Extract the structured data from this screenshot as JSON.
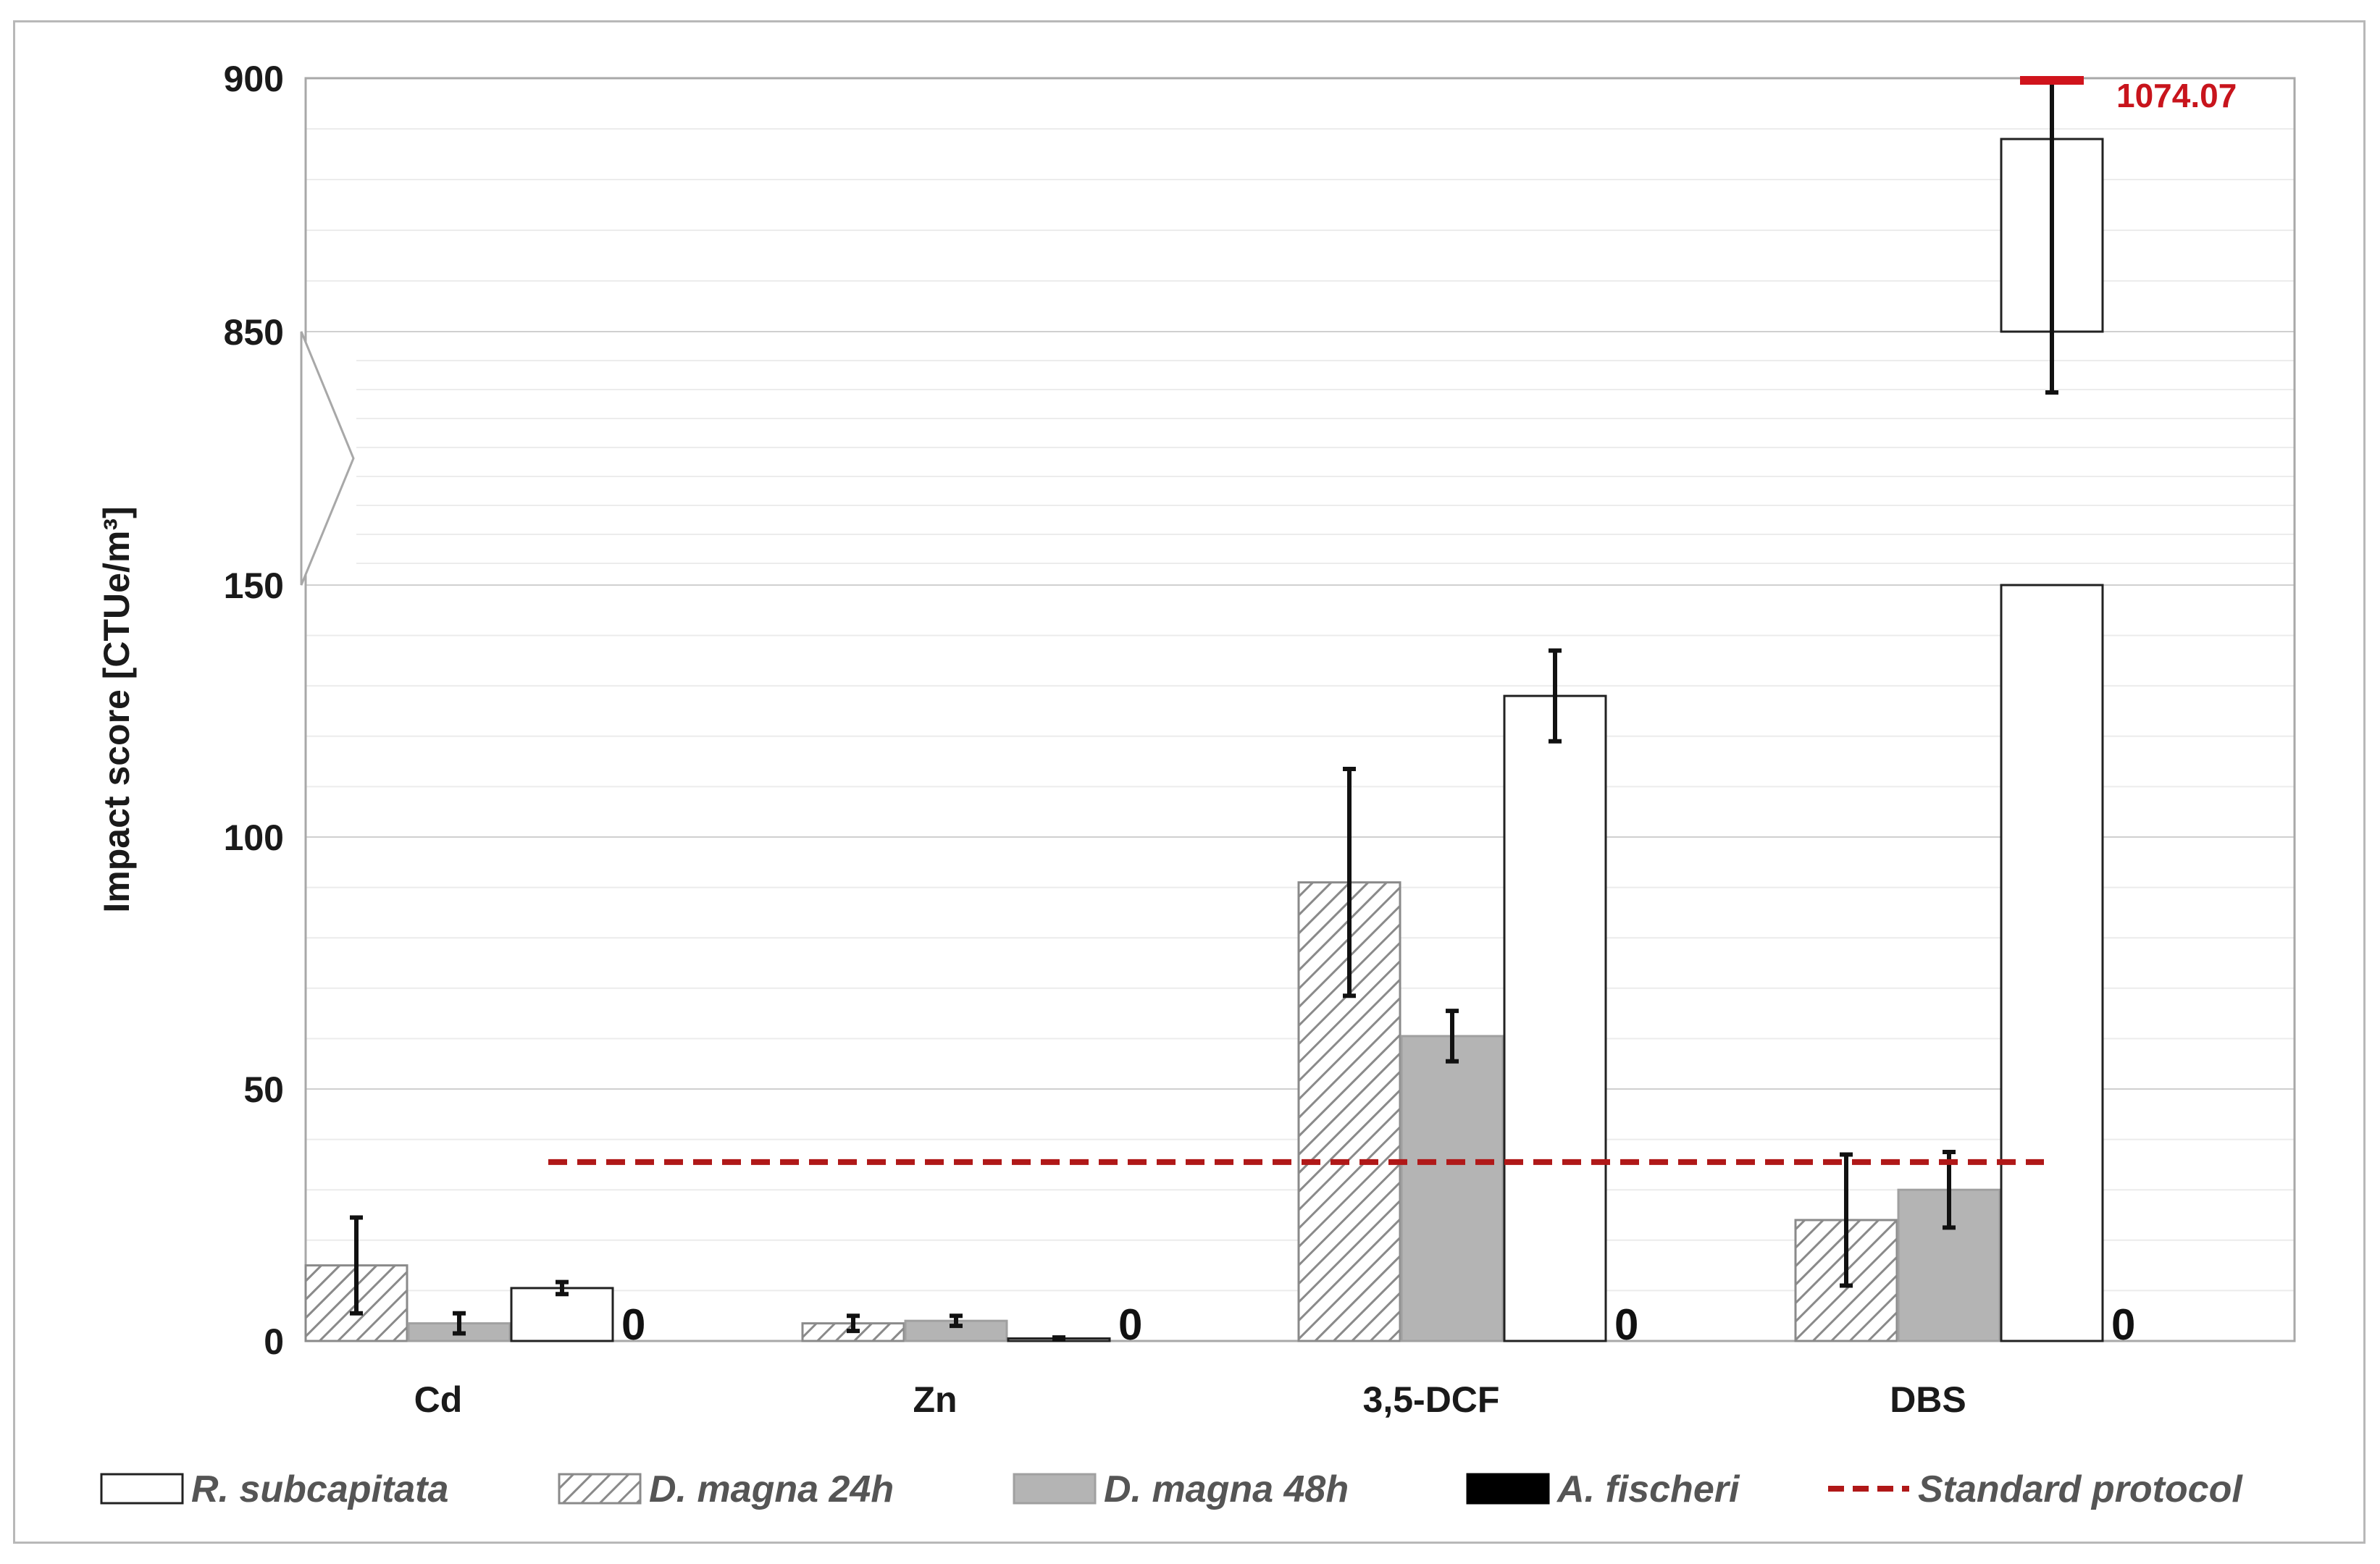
{
  "chart_data": {
    "type": "bar",
    "ylabel": "Impact score [CTUe/m³]",
    "y_axis_break": {
      "lower_range": [
        0,
        150
      ],
      "upper_range": [
        850,
        900
      ]
    },
    "y_ticks": [
      "0",
      "50",
      "100",
      "150",
      "850",
      "900"
    ],
    "categories": [
      "Cd",
      "Zn",
      "3,5-DCF",
      "DBS"
    ],
    "series": [
      {
        "name": "D. magna 24h",
        "style": "hatched",
        "color": "#8a8a8a",
        "values": [
          15,
          3.5,
          91,
          24
        ],
        "errors": [
          9.5,
          1.5,
          22.5,
          13
        ]
      },
      {
        "name": "D. magna 48h",
        "style": "gray",
        "color": "#b4b4b4",
        "values": [
          3.5,
          4,
          60.5,
          30
        ],
        "errors": [
          2,
          1,
          5,
          7.5
        ]
      },
      {
        "name": "R. subcapitata",
        "style": "white",
        "color": "#ffffff",
        "values": [
          10.5,
          0.5,
          128,
          888
        ],
        "errors": [
          1.2,
          0.2,
          9,
          50
        ]
      },
      {
        "name": "A. fischeri",
        "style": "black",
        "color": "#000000",
        "values": [
          0,
          0,
          0,
          0
        ],
        "errors": [
          0,
          0,
          0,
          0
        ]
      }
    ],
    "zero_labels": [
      "0",
      "0",
      "0",
      "0"
    ],
    "reference_line": {
      "name": "Standard protocol",
      "value": 35.5,
      "color": "#b01818"
    },
    "annotation": {
      "text": "1074.07",
      "color": "#d0141c"
    },
    "legend": {
      "position": "bottom",
      "entries": [
        "R. subcapitata",
        "D. magna 24h",
        "D. magna 48h",
        "A. fischeri",
        "Standard protocol"
      ]
    }
  }
}
